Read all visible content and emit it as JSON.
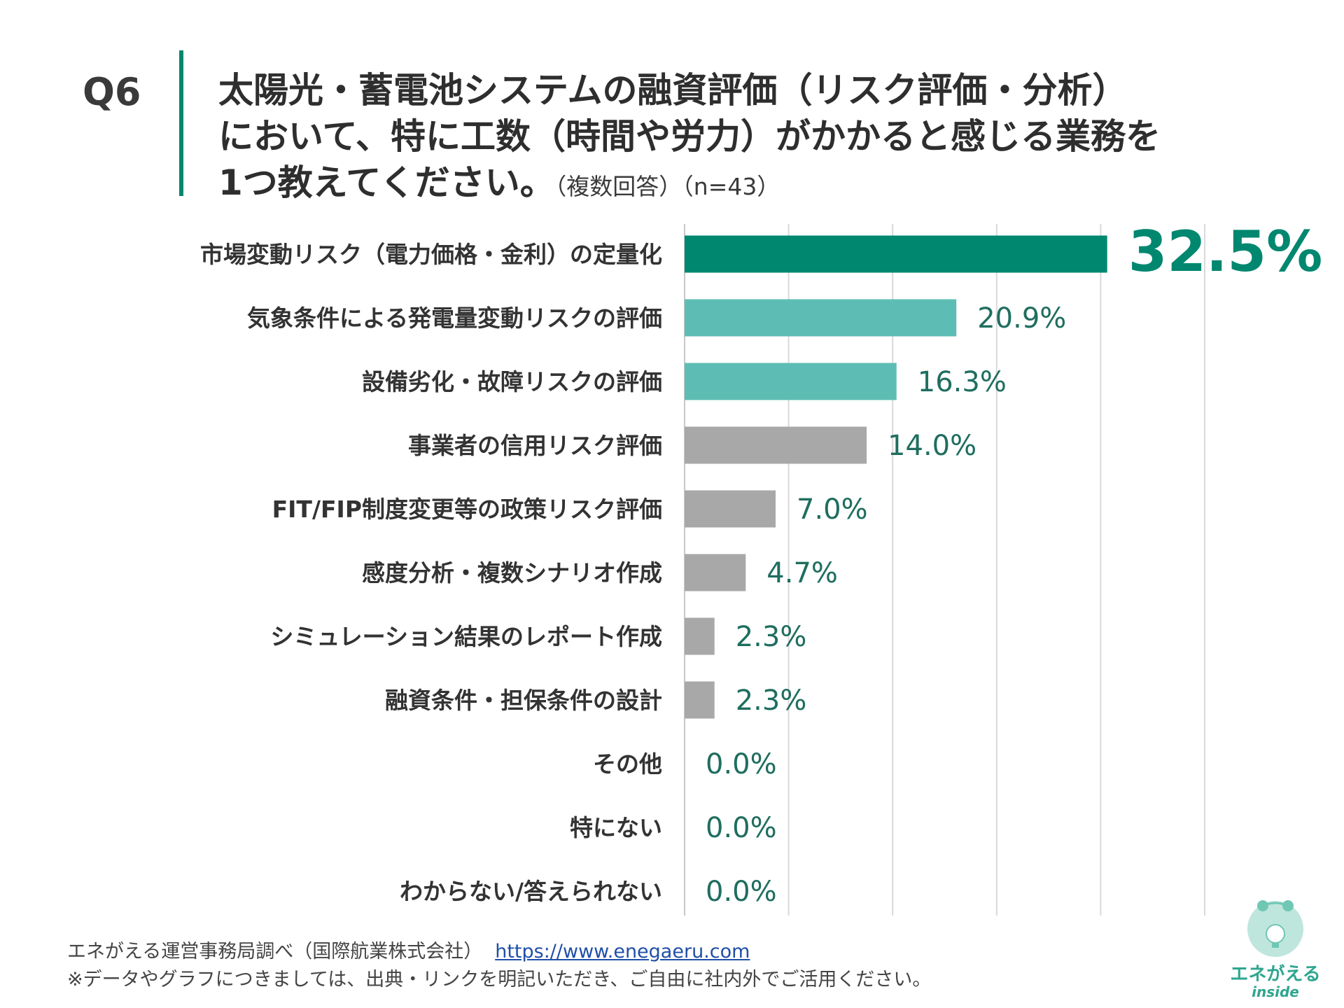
{
  "question": {
    "label": "Q6",
    "line1": "太陽光・蓄電池システムの融資評価（リスク評価・分析）",
    "line2": "において、特に工数（時間や労力）がかかると感じる業務を",
    "line3": "1つ教えてください。",
    "note": "（複数回答）（n=43）"
  },
  "chart_data": {
    "type": "bar",
    "orientation": "horizontal",
    "categories": [
      "市場変動リスク（電力価格・金利）の定量化",
      "気象条件による発電量変動リスクの評価",
      "設備劣化・故障リスクの評価",
      "事業者の信用リスク評価",
      "FIT/FIP制度変更等の政策リスク評価",
      "感度分析・複数シナリオ作成",
      "シミュレーション結果のレポート作成",
      "融資条件・担保条件の設計",
      "その他",
      "特にない",
      "わからない/答えられない"
    ],
    "values": [
      32.5,
      20.9,
      16.3,
      14.0,
      7.0,
      4.7,
      2.3,
      2.3,
      0.0,
      0.0,
      0.0
    ],
    "value_labels": [
      "32.5%",
      "20.9%",
      "16.3%",
      "14.0%",
      "7.0%",
      "4.7%",
      "2.3%",
      "2.3%",
      "0.0%",
      "0.0%",
      "0.0%"
    ],
    "xlim": [
      0,
      40
    ],
    "grid": true,
    "colors": {
      "top": "#00876f",
      "high": "#5dbdb4",
      "other": "#a8a8a8",
      "label": "#1f6e5f",
      "gridline": "#d9d9d9"
    },
    "color_groups": [
      "top",
      "high",
      "high",
      "other",
      "other",
      "other",
      "other",
      "other",
      "other",
      "other",
      "other"
    ]
  },
  "footer": {
    "source": "エネがえる運営事務局調べ（国際航業株式会社）",
    "url": "https://www.enegaeru.com",
    "note": "※データやグラフにつきましては、出典・リンクを明記いただき、ご自由に社内外でご活用ください。"
  },
  "logo": {
    "text": "エネがえる",
    "sub": "inside",
    "icon": "frog-lightbulb-icon"
  }
}
